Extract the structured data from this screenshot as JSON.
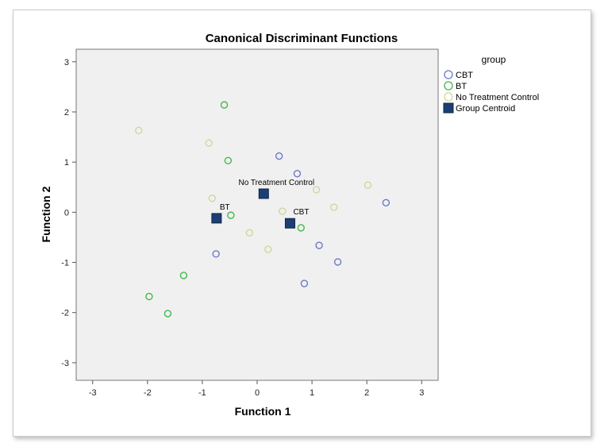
{
  "chart_data": {
    "type": "scatter",
    "title": "Canonical Discriminant Functions",
    "xlabel": "Function 1",
    "ylabel": "Function 2",
    "xlim": [
      -3.3,
      3.3
    ],
    "ylim": [
      -3.35,
      3.25
    ],
    "xticks": [
      -3,
      -2,
      -1,
      0,
      1,
      2,
      3
    ],
    "yticks": [
      -3,
      -2,
      -1,
      0,
      1,
      2,
      3
    ],
    "grid": false,
    "legend": {
      "title": "group",
      "position": "right",
      "entries": [
        {
          "label": "CBT",
          "color": "#6a79c9",
          "marker": "circle"
        },
        {
          "label": "BT",
          "color": "#41b84a",
          "marker": "circle"
        },
        {
          "label": "No Treatment Control",
          "color": "#d2d69b",
          "marker": "circle"
        },
        {
          "label": "Group Centroid",
          "color": "#1c3f73",
          "marker": "square"
        }
      ]
    },
    "series": [
      {
        "name": "CBT",
        "color": "#6a79c9",
        "points": [
          [
            0.4,
            1.12
          ],
          [
            0.73,
            0.77
          ],
          [
            2.35,
            0.19
          ],
          [
            1.13,
            -0.66
          ],
          [
            1.47,
            -0.99
          ],
          [
            0.86,
            -1.42
          ],
          [
            -0.75,
            -0.83
          ]
        ]
      },
      {
        "name": "BT",
        "color": "#41b84a",
        "points": [
          [
            -0.6,
            2.14
          ],
          [
            -0.53,
            1.03
          ],
          [
            -0.48,
            -0.06
          ],
          [
            0.8,
            -0.31
          ],
          [
            -1.34,
            -1.26
          ],
          [
            -1.97,
            -1.68
          ],
          [
            -1.63,
            -2.02
          ]
        ]
      },
      {
        "name": "No Treatment Control",
        "color": "#d2d69b",
        "points": [
          [
            -2.16,
            1.63
          ],
          [
            -0.88,
            1.38
          ],
          [
            -0.82,
            0.28
          ],
          [
            1.08,
            0.45
          ],
          [
            2.02,
            0.54
          ],
          [
            1.4,
            0.1
          ],
          [
            0.46,
            0.02
          ],
          [
            -0.14,
            -0.41
          ],
          [
            0.2,
            -0.74
          ]
        ]
      }
    ],
    "centroids": [
      {
        "label": "No Treatment Control",
        "x": 0.12,
        "y": 0.37
      },
      {
        "label": "BT",
        "x": -0.74,
        "y": -0.12
      },
      {
        "label": "CBT",
        "x": 0.6,
        "y": -0.22
      }
    ]
  }
}
